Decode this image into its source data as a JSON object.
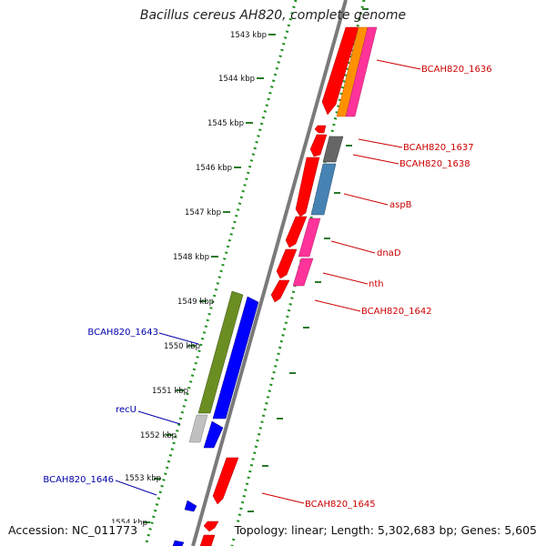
{
  "title": "Bacillus cereus AH820, complete genome",
  "footer": {
    "accession": "Accession: NC_011773",
    "summary": "Topology: linear; Length: 5,302,683 bp; Genes: 5,605"
  },
  "colors": {
    "forward_gene": "#0000ff",
    "reverse_gene": "#ff0000",
    "backbone": "#888888",
    "ruler_tick": "#2a7a2a",
    "reverse_label": "#cc0000",
    "forward_label": "#0000aa"
  },
  "ruler": {
    "ticks": [
      "1543 kbp",
      "1544 kbp",
      "1545 kbp",
      "1546 kbp",
      "1547 kbp",
      "1548 kbp",
      "1549 kbp",
      "1550 kbp",
      "1551 kbp",
      "1552 kbp",
      "1553 kbp",
      "1554 kbp"
    ]
  },
  "genes": {
    "reverse_strand": [
      "BCAH820_1636",
      "BCAH820_1637",
      "BCAH820_1638",
      "aspB",
      "dnaD",
      "nth",
      "BCAH820_1642",
      "BCAH820_1645"
    ],
    "forward_strand": [
      "BCAH820_1643",
      "recU",
      "BCAH820_1646"
    ]
  }
}
